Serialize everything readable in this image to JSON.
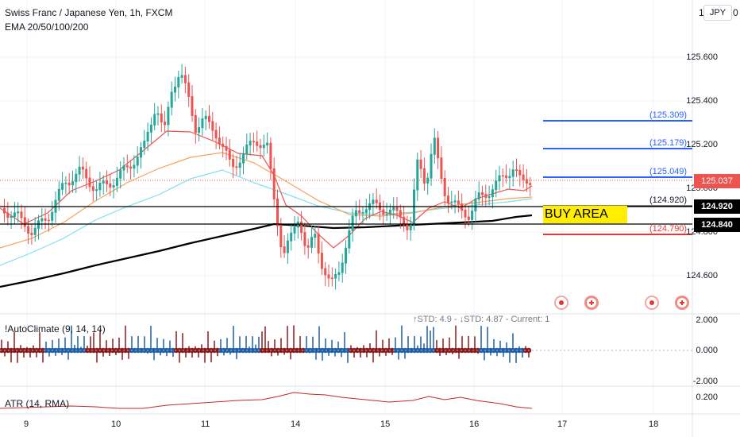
{
  "header": {
    "title": "Swiss Franc / Japanese Yen, 1h, FXCM",
    "indicator": "EMA 20/50/100/200",
    "currency": "JPY",
    "price_top": "1"
  },
  "price_axis": {
    "ticks": [
      "125.600",
      "125.400",
      "125.200",
      "125.000",
      "124.800",
      "124.600"
    ]
  },
  "price_tags": {
    "current": "125.037",
    "level_1": "124.920",
    "level_2": "124.840"
  },
  "fib_levels": {
    "l1": "(125.309)",
    "l2": "(125.179)",
    "l3": "(125.049)",
    "l4": "(124.920)",
    "l5": "(124.790)"
  },
  "annotation": {
    "buy_area": "BUY AREA"
  },
  "autoclimate": {
    "title": "!AutoClimate (9, 14, 14)",
    "stats": "↑STD: 4.9 - ↓STD: 4.87 - Current: 1",
    "ticks": [
      "2.000",
      "0.000",
      "-2.000"
    ]
  },
  "atr": {
    "title": "ATR (14, RMA)",
    "tick": "0.200"
  },
  "time_axis": {
    "labels": [
      "9",
      "10",
      "11",
      "14",
      "15",
      "16",
      "17",
      "18"
    ]
  },
  "colors": {
    "up": "#26a69a",
    "down": "#ef5350",
    "ema20": "#ef5350",
    "ema50": "#f5a35c",
    "ema100": "#7ee0ee",
    "ema200": "#000000",
    "fib_blue": "#2962ff",
    "fib_red": "#e53935",
    "climate_blue": "#1e5fa8",
    "climate_red": "#8b1a1a",
    "atr": "#c62828"
  }
}
